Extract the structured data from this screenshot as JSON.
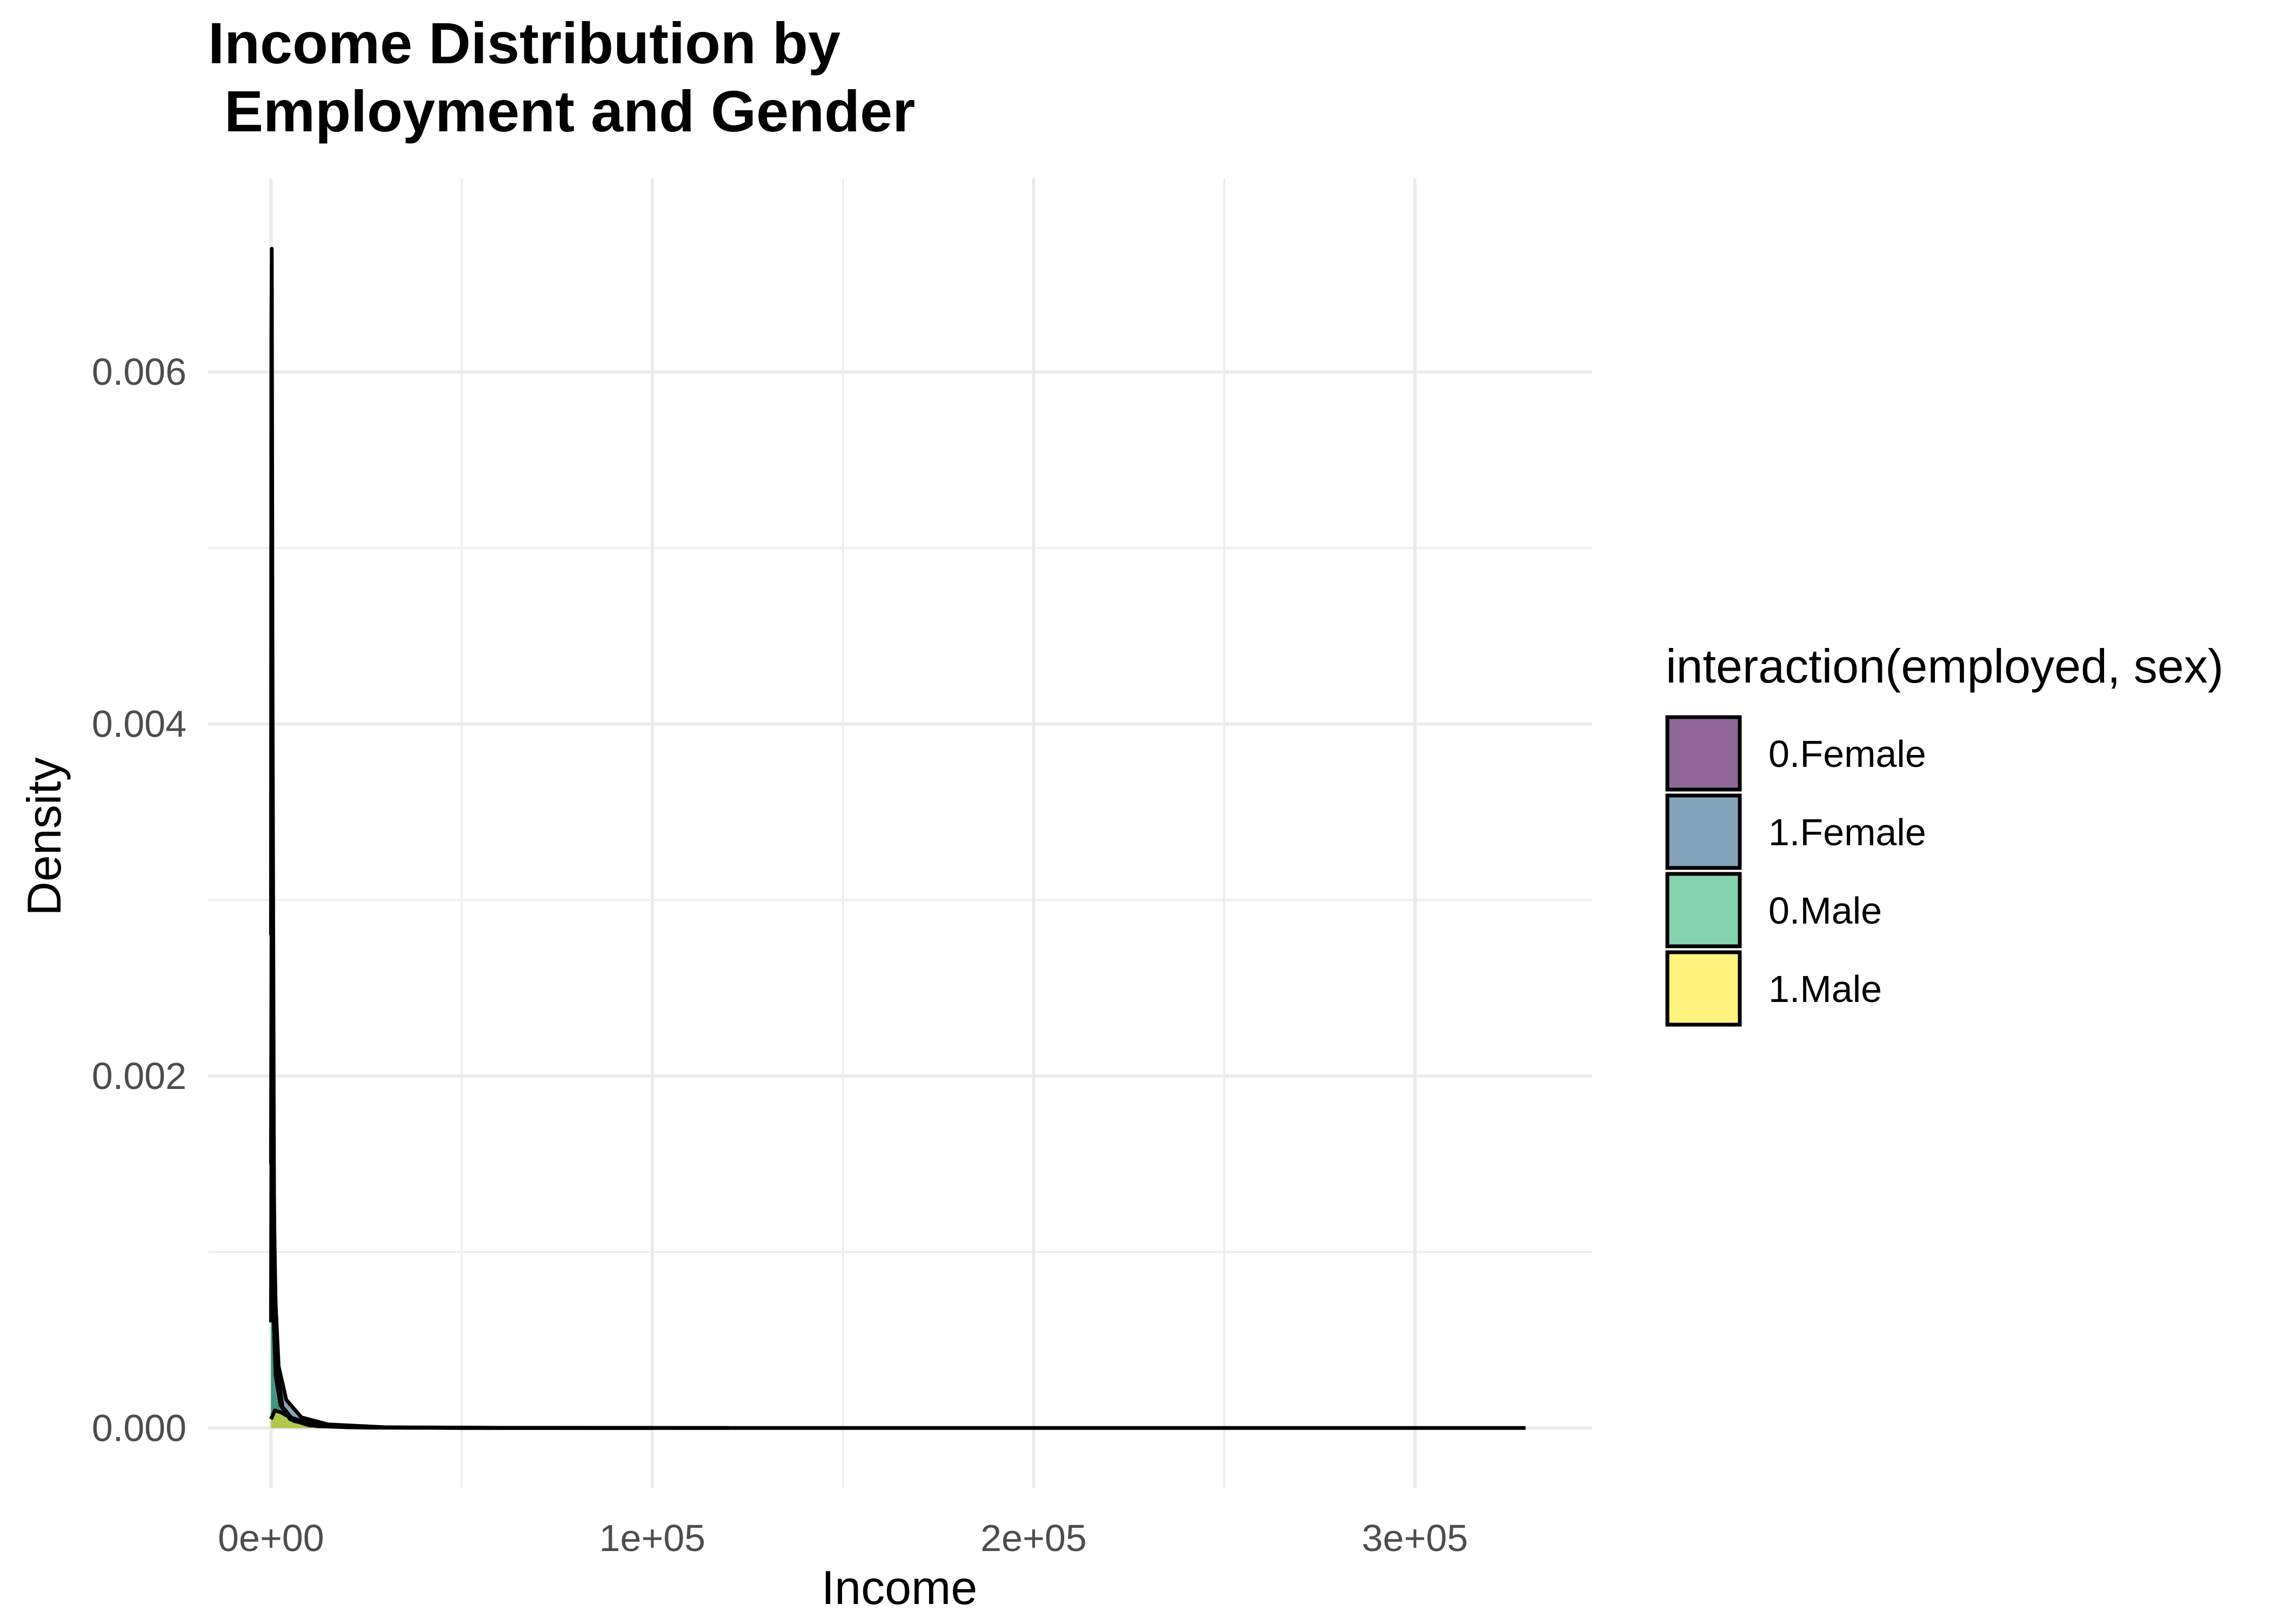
{
  "chart_data": {
    "type": "area",
    "title_lines": [
      "Income Distribution by",
      " Employment and Gender"
    ],
    "xlabel": "Income",
    "ylabel": "Density",
    "xlim": [
      -16500,
      346500
    ],
    "ylim": [
      -0.00034,
      0.0071
    ],
    "x_ticks": [
      {
        "value": 0,
        "label": "0e+00"
      },
      {
        "value": 100000,
        "label": "1e+05"
      },
      {
        "value": 200000,
        "label": "2e+05"
      },
      {
        "value": 300000,
        "label": "3e+05"
      }
    ],
    "x_minor": [
      50000,
      150000,
      250000
    ],
    "y_ticks": [
      {
        "value": 0,
        "label": "0.000"
      },
      {
        "value": 0.002,
        "label": "0.002"
      },
      {
        "value": 0.004,
        "label": "0.004"
      },
      {
        "value": 0.006,
        "label": "0.006"
      }
    ],
    "y_minor": [
      0.001,
      0.003,
      0.005
    ],
    "grid": true,
    "legend": {
      "title": "interaction(employed, sex)",
      "position": "right"
    },
    "series": [
      {
        "name": "0.Female",
        "color": "#440154",
        "x": [
          0,
          100,
          200,
          400,
          800,
          1500,
          3000,
          6000,
          12000,
          25000,
          50000,
          100000
        ],
        "y": [
          0.0028,
          0.0062,
          0.0067,
          0.0042,
          0.0012,
          0.00035,
          0.00012,
          4e-05,
          1e-05,
          2e-06,
          0,
          0
        ]
      },
      {
        "name": "1.Female",
        "color": "#31688E",
        "x": [
          0,
          200,
          500,
          1000,
          2000,
          4000,
          8000,
          15000,
          30000,
          60000,
          120000
        ],
        "y": [
          0.0006,
          0.0024,
          0.0021,
          0.0008,
          0.00035,
          0.00016,
          6e-05,
          2e-05,
          4e-06,
          1e-06,
          0
        ]
      },
      {
        "name": "0.Male",
        "color": "#35B779",
        "x": [
          0,
          150,
          300,
          600,
          1200,
          2500,
          5000,
          10000,
          20000,
          50000,
          100000
        ],
        "y": [
          0.0015,
          0.0029,
          0.0018,
          0.0007,
          0.0003,
          0.00013,
          5e-05,
          1.5e-05,
          4e-06,
          0,
          0
        ]
      },
      {
        "name": "1.Male",
        "color": "#FDE725",
        "x": [
          0,
          1000,
          2500,
          5000,
          8000,
          12000,
          18000,
          25000,
          35000,
          60000,
          100000,
          200000,
          329000
        ],
        "y": [
          5e-05,
          0.0001,
          9e-05,
          6e-05,
          4e-05,
          2.2e-05,
          1e-05,
          5e-06,
          2e-06,
          5e-07,
          1e-07,
          0,
          0
        ]
      }
    ]
  }
}
